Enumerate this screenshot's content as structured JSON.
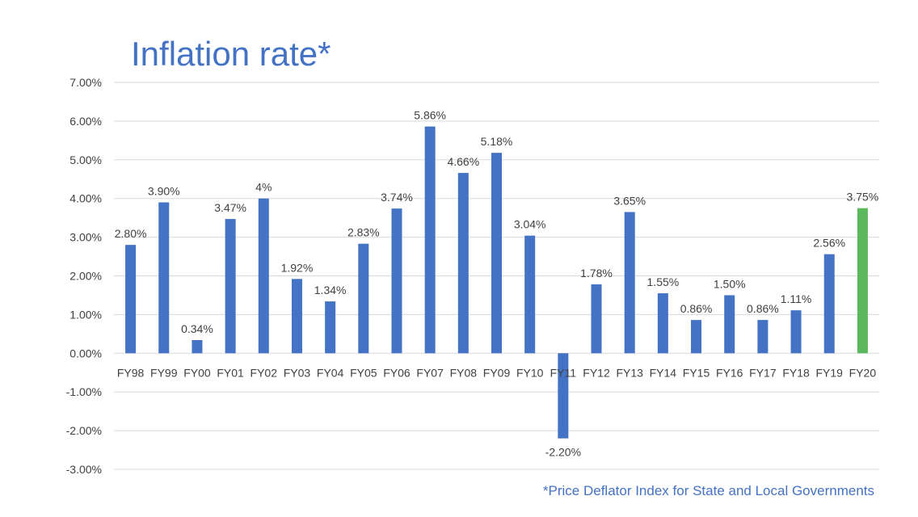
{
  "chart_data": {
    "type": "bar",
    "title": "Inflation rate*",
    "footnote": "*Price Deflator Index for State and Local Governments",
    "xlabel": "",
    "ylabel": "",
    "ylim": [
      -3,
      7
    ],
    "yticks": [
      7,
      6,
      5,
      4,
      3,
      2,
      1,
      0,
      -1,
      -2,
      -3
    ],
    "ytick_labels": [
      "7.00%",
      "6.00%",
      "5.00%",
      "4.00%",
      "3.00%",
      "2.00%",
      "1.00%",
      "0.00%",
      "-1.00%",
      "-2.00%",
      "-3.00%"
    ],
    "grid": true,
    "legend": "none",
    "categories": [
      "FY98",
      "FY99",
      "FY00",
      "FY01",
      "FY02",
      "FY03",
      "FY04",
      "FY05",
      "FY06",
      "FY07",
      "FY08",
      "FY09",
      "FY10",
      "FY11",
      "FY12",
      "FY13",
      "FY14",
      "FY15",
      "FY16",
      "FY17",
      "FY18",
      "FY19",
      "FY20"
    ],
    "values": [
      2.8,
      3.9,
      0.34,
      3.47,
      4.0,
      1.92,
      1.34,
      2.83,
      3.74,
      5.86,
      4.66,
      5.18,
      3.04,
      -2.2,
      1.78,
      3.65,
      1.55,
      0.86,
      1.5,
      0.86,
      1.11,
      2.56,
      3.75
    ],
    "data_labels": [
      "2.80%",
      "3.90%",
      "0.34%",
      "3.47%",
      "4%",
      "1.92%",
      "1.34%",
      "2.83%",
      "3.74%",
      "5.86%",
      "4.66%",
      "5.18%",
      "3.04%",
      "-2.20%",
      "1.78%",
      "3.65%",
      "1.55%",
      "0.86%",
      "1.50%",
      "0.86%",
      "1.11%",
      "2.56%",
      "3.75%"
    ],
    "colors": {
      "default": "#4472c4",
      "highlight": "#5cb85c"
    },
    "highlight_index": 22
  }
}
